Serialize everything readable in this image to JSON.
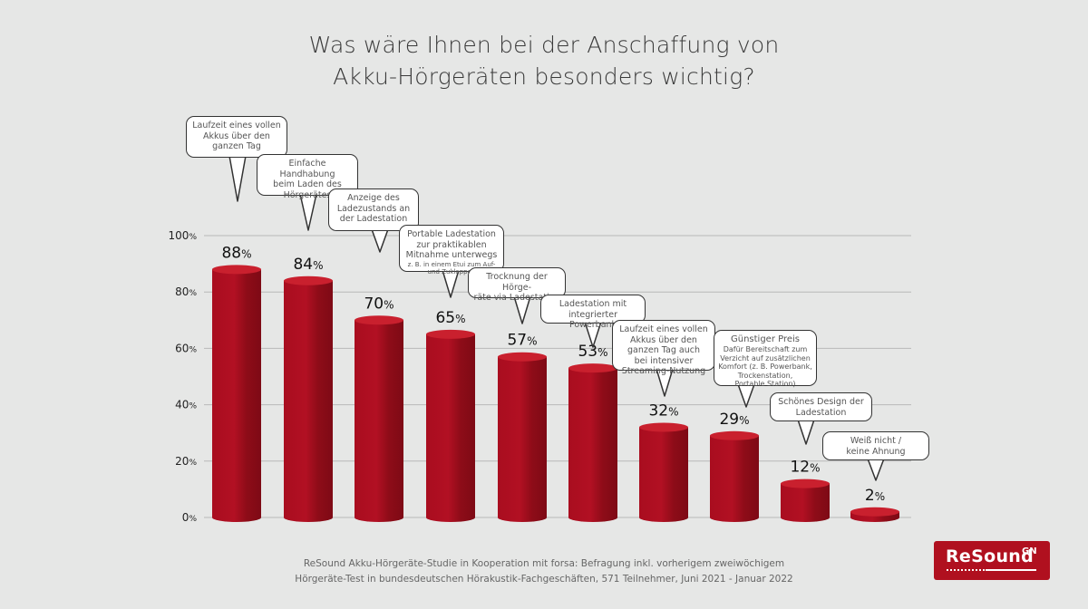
{
  "title": {
    "line1": "Was wäre Ihnen bei der Anschaffung von",
    "line2": "Akku-Hörgeräten besonders wichtig?"
  },
  "chart_data": {
    "type": "bar",
    "title": "Was wäre Ihnen bei der Anschaffung von Akku-Hörgeräten besonders wichtig?",
    "xlabel": "",
    "ylabel": "",
    "ylim": [
      0,
      100
    ],
    "yticks": [
      "0%",
      "20%",
      "40%",
      "60%",
      "80%",
      "100%"
    ],
    "grid": true,
    "unit": "%",
    "categories": [
      "Laufzeit eines vollen Akkus über den ganzen Tag",
      "Einfache Handhabung beim Laden des Hörgerätes",
      "Anzeige des Ladezustands an der Ladestation",
      "Portable Ladestation zur praktikablen Mitnahme unterwegs (z. B. in einem Etui zum Auf- und Zuklappen)",
      "Trocknung der Hörgeräte via Ladestation",
      "Ladestation mit integrierter Powerbank",
      "Laufzeit eines vollen Akkus über den ganzen Tag auch bei intensiver Streaming-Nutzung",
      "Günstiger Preis (Dafür Bereitschaft zum Verzicht auf zusätzlichen Komfort (z. B. Powerbank, Trockenstation, Portable Station))",
      "Schönes Design der Ladestation",
      "Weiß nicht / keine Ahnung"
    ],
    "values": [
      88,
      84,
      70,
      65,
      57,
      53,
      32,
      29,
      12,
      2
    ],
    "value_labels": [
      "88",
      "84",
      "70",
      "65",
      "57",
      "53",
      "32",
      "29",
      "12",
      "2"
    ],
    "bar_color": "#b0101f"
  },
  "bubbles": [
    {
      "lines": [
        "Laufzeit eines vollen",
        "Akkus über den",
        "ganzen Tag"
      ]
    },
    {
      "lines": [
        "Einfache Handhabung",
        "beim Laden des",
        "Hörgerätes"
      ]
    },
    {
      "lines": [
        "Anzeige des",
        "Ladezustands an",
        "der Ladestation"
      ]
    },
    {
      "lines": [
        "Portable Ladestation",
        "zur praktikablen",
        "Mitnahme unterwegs"
      ],
      "small": [
        "z. B. in einem Etui zum Auf-",
        "und Zuklappen"
      ]
    },
    {
      "lines": [
        "Trocknung der Hörge-",
        "räte via Ladestation"
      ]
    },
    {
      "lines": [
        "Ladestation mit",
        "integrierter Powerbank"
      ]
    },
    {
      "lines": [
        "Laufzeit eines vollen",
        "Akkus über den",
        "ganzen Tag auch",
        "bei intensiver",
        "Streaming-Nutzung"
      ]
    },
    {
      "lines": [
        "Günstiger Preis"
      ],
      "small": [
        "Dafür Bereitschaft zum",
        "Verzicht auf zusätzlichen",
        "Komfort (z. B. Powerbank,",
        "Trockenstation,",
        "Portable Station)"
      ]
    },
    {
      "lines": [
        "Schönes Design der",
        "Ladestation"
      ]
    },
    {
      "lines": [
        "Weiß nicht /",
        "keine Ahnung"
      ]
    }
  ],
  "footnote": {
    "line1": "ReSound Akku-Hörgeräte-Studie in Kooperation mit forsa: Befragung inkl. vorherigem zweiwöchigem",
    "line2": "Hörgeräte-Test in bundesdeutschen Hörakustik-Fachgeschäften, 571 Teilnehmer, Juni 2021 - Januar 2022"
  },
  "logo": {
    "brand": "ReSound",
    "suffix": "GN",
    "color": "#b0101f"
  }
}
